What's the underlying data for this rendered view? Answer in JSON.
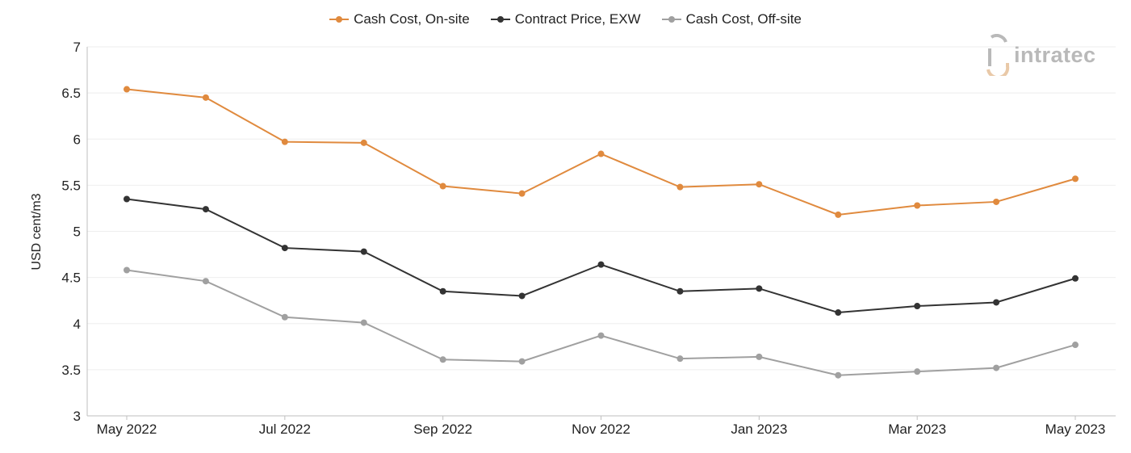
{
  "logo": {
    "text": "intratec"
  },
  "chart_data": {
    "type": "line",
    "title": "",
    "xlabel": "",
    "ylabel": "USD cent/m3",
    "ylim": [
      3,
      7
    ],
    "yticks": [
      "3",
      "3.5",
      "4",
      "4.5",
      "5",
      "5.5",
      "6",
      "6.5",
      "7"
    ],
    "x": [
      "May 2022",
      "Jun 2022",
      "Jul 2022",
      "Aug 2022",
      "Sep 2022",
      "Oct 2022",
      "Nov 2022",
      "Dec 2022",
      "Jan 2023",
      "Feb 2023",
      "Mar 2023",
      "Apr 2023",
      "May 2023"
    ],
    "xtick_labels": [
      "May 2022",
      "Jul 2022",
      "Sep 2022",
      "Nov 2022",
      "Jan 2023",
      "Mar 2023",
      "May 2023"
    ],
    "grid": true,
    "legend_position": "top-center",
    "series": [
      {
        "name": "Cash Cost, On-site",
        "color": "#e08a3e",
        "values": [
          6.54,
          6.45,
          5.97,
          5.96,
          5.49,
          5.41,
          5.84,
          5.48,
          5.51,
          5.18,
          5.28,
          5.32,
          5.57
        ]
      },
      {
        "name": "Contract Price, EXW",
        "color": "#333333",
        "values": [
          5.35,
          5.24,
          4.82,
          4.78,
          4.35,
          4.3,
          4.64,
          4.35,
          4.38,
          4.12,
          4.19,
          4.23,
          4.49
        ]
      },
      {
        "name": "Cash Cost, Off-site",
        "color": "#a0a0a0",
        "values": [
          4.58,
          4.46,
          4.07,
          4.01,
          3.61,
          3.59,
          3.87,
          3.62,
          3.64,
          3.44,
          3.48,
          3.52,
          3.77
        ]
      }
    ]
  }
}
